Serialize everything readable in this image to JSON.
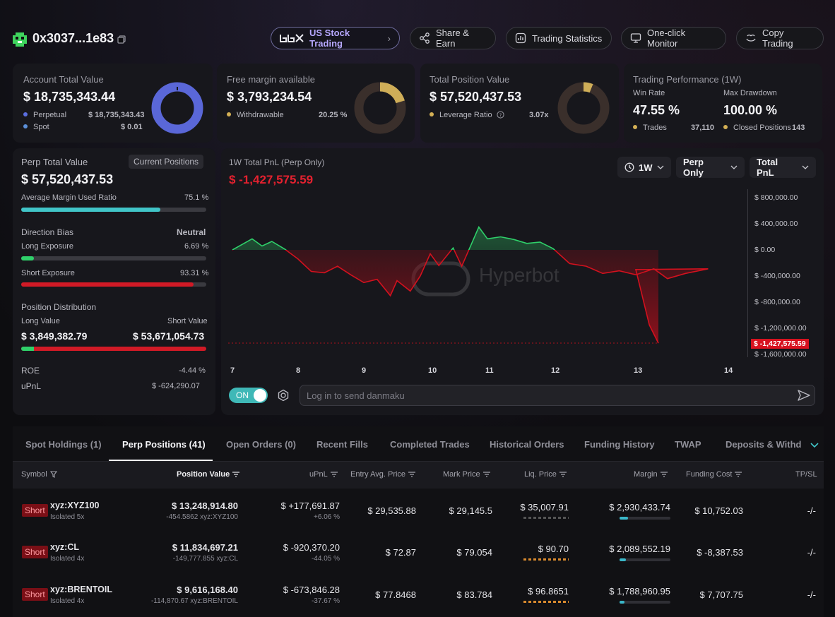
{
  "header": {
    "address": "0x3037...1e83",
    "buttons": {
      "us_stock": "US Stock Trading",
      "share": "Share & Earn",
      "stats": "Trading Statistics",
      "monitor": "One-click Monitor",
      "copy": "Copy Trading"
    }
  },
  "cards": {
    "account": {
      "title": "Account Total Value",
      "value": "$ 18,735,343.44",
      "rows": [
        {
          "label": "Perpetual",
          "value": "$ 18,735,343.43"
        },
        {
          "label": "Spot",
          "value": "$ 0.01"
        }
      ],
      "donut_fraction": 0.9999
    },
    "free_margin": {
      "title": "Free margin available",
      "value": "$ 3,793,234.54",
      "row_label": "Withdrawable",
      "row_value": "20.25 %",
      "donut_fraction": 0.2025
    },
    "position": {
      "title": "Total Position Value",
      "value": "$ 57,520,437.53",
      "row_label": "Leverage Ratio",
      "row_value": "3.07x",
      "donut_fraction": 0.06
    },
    "performance": {
      "title": "Trading Performance (1W)",
      "win_rate_label": "Win Rate",
      "win_rate": "47.55 %",
      "drawdown_label": "Max Drawdown",
      "drawdown": "100.00 %",
      "trades_label": "Trades",
      "trades": "37,110",
      "closed_label": "Closed Positions",
      "closed": "143"
    }
  },
  "perp": {
    "title": "Perp Total Value",
    "current_positions": "Current Positions",
    "value": "$ 57,520,437.53",
    "margin_label": "Average Margin Used Ratio",
    "margin_value": "75.1 %",
    "margin_fraction": 0.751,
    "bias_label": "Direction Bias",
    "bias_value": "Neutral",
    "long_label": "Long Exposure",
    "long_value": "6.69 %",
    "long_fraction": 0.0669,
    "short_label": "Short Exposure",
    "short_value": "93.31 %",
    "short_fraction": 0.9331,
    "dist_label": "Position Distribution",
    "long_value_label": "Long Value",
    "short_value_label": "Short Value",
    "long_amount": "$ 3,849,382.79",
    "short_amount": "$ 53,671,054.73",
    "roe_label": "ROE",
    "roe_value": "-4.44 %",
    "upnl_label": "uPnL",
    "upnl_value": "$ -624,290.07"
  },
  "pnl": {
    "title": "1W Total PnL (Perp Only)",
    "value": "$ -1,427,575.59",
    "range": "1W",
    "scope": "Perp Only",
    "metric": "Total PnL",
    "watermark": "Hyperbot",
    "toggle": "ON",
    "danmaku_placeholder": "Log in to send danmaku",
    "current_label": "$ -1,427,575.59"
  },
  "chart_data": {
    "type": "line",
    "title": "1W Total PnL (Perp Only)",
    "xlabel": "",
    "ylabel": "",
    "x_ticks": [
      "7",
      "8",
      "9",
      "10",
      "11",
      "12",
      "13",
      "14"
    ],
    "y_ticks": [
      "$ 800,000.00",
      "$ 400,000.00",
      "$ 0.00",
      "$ -400,000.00",
      "$ -800,000.00",
      "$ -1,200,000.00",
      "$ -1,600,000.00"
    ],
    "ylim": [
      -1700000,
      900000
    ],
    "xlim": [
      7,
      14.3
    ],
    "x": [
      7.0,
      7.3,
      7.45,
      7.6,
      7.8,
      8.0,
      8.2,
      8.4,
      8.6,
      8.8,
      9.0,
      9.2,
      9.4,
      9.5,
      9.7,
      9.85,
      10.0,
      10.15,
      10.4,
      10.55,
      10.7,
      10.85,
      11.0,
      11.2,
      11.4,
      11.6,
      11.8,
      12.0,
      12.2,
      12.4,
      12.6,
      12.8,
      13.0,
      13.2,
      13.35,
      13.55,
      13.8,
      14.0,
      14.15,
      14.25
    ],
    "y": [
      0,
      170,
      60,
      130,
      10,
      -140,
      -330,
      -350,
      -250,
      -380,
      -500,
      -450,
      -700,
      -470,
      -630,
      -400,
      -60,
      -240,
      30,
      -250,
      50,
      350,
      170,
      200,
      160,
      100,
      120,
      20,
      -210,
      -250,
      -360,
      -320,
      -380,
      -290,
      -440,
      -360,
      -290,
      -300,
      -1150,
      -1427.58
    ],
    "y_unit_multiplier": 1000
  },
  "tabs": [
    {
      "label": "Spot Holdings (1)"
    },
    {
      "label": "Perp Positions (41)"
    },
    {
      "label": "Open Orders (0)"
    },
    {
      "label": "Recent Fills"
    },
    {
      "label": "Completed Trades"
    },
    {
      "label": "Historical Orders"
    },
    {
      "label": "Funding History"
    },
    {
      "label": "TWAP"
    },
    {
      "label": "Deposits & Withdra"
    }
  ],
  "table": {
    "headers": [
      "Symbol",
      "Position Value",
      "uPnL",
      "Entry Avg. Price",
      "Mark Price",
      "Liq. Price",
      "Margin",
      "Funding Cost",
      "TP/SL"
    ],
    "rows": [
      {
        "side": "Short",
        "symbol": "xyz:XYZ100",
        "mode": "Isolated 5x",
        "position_value": "$ 13,248,914.80",
        "position_size": "-454.5862 xyz:XYZ100",
        "upnl": "$ +177,691.87",
        "upnl_pct": "+6.06 %",
        "upnl_positive": true,
        "entry": "$ 29,535.88",
        "mark": "$ 29,145.5",
        "liq": "$ 35,007.91",
        "margin": "$ 2,930,433.74",
        "funding": "$ 10,752.03",
        "funding_positive": true,
        "tpsl": "-/-"
      },
      {
        "side": "Short",
        "symbol": "xyz:CL",
        "mode": "Isolated 4x",
        "position_value": "$ 11,834,697.21",
        "position_size": "-149,777.855 xyz:CL",
        "upnl": "$ -920,370.20",
        "upnl_pct": "-44.05 %",
        "upnl_positive": false,
        "entry": "$ 72.87",
        "mark": "$ 79.054",
        "liq": "$ 90.70",
        "margin": "$ 2,089,552.19",
        "funding": "$ -8,387.53",
        "funding_positive": false,
        "tpsl": "-/-"
      },
      {
        "side": "Short",
        "symbol": "xyz:BRENTOIL",
        "mode": "Isolated 4x",
        "position_value": "$ 9,616,168.40",
        "position_size": "-114,870.67 xyz:BRENTOIL",
        "upnl": "$ -673,846.28",
        "upnl_pct": "-37.67 %",
        "upnl_positive": false,
        "entry": "$ 77.8468",
        "mark": "$ 83.784",
        "liq": "$ 96.8651",
        "margin": "$ 1,788,960.95",
        "funding": "$ 7,707.75",
        "funding_positive": true,
        "tpsl": "-/-"
      }
    ]
  }
}
